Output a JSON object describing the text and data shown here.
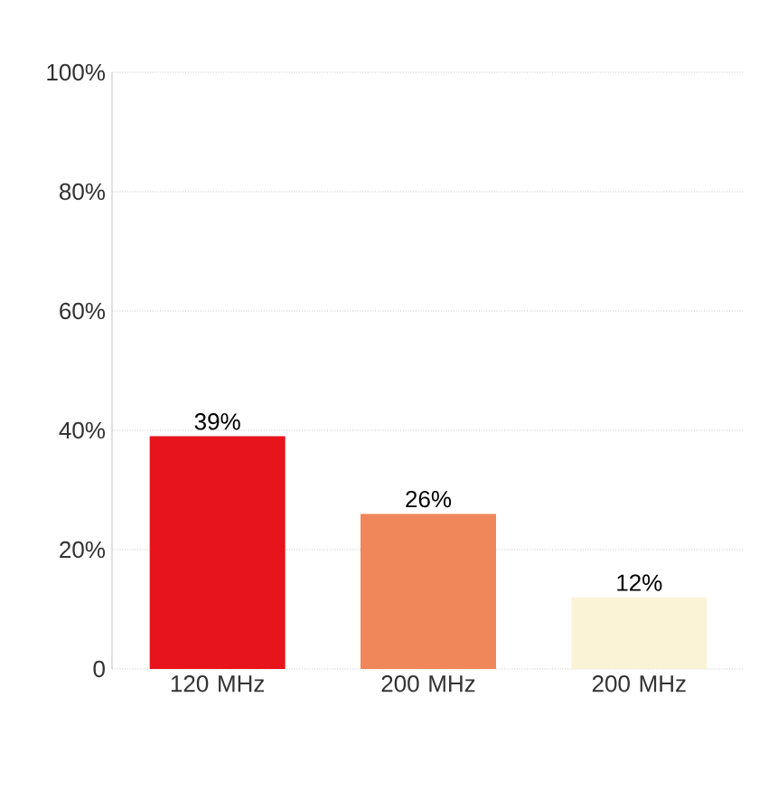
{
  "chart_data": {
    "type": "bar",
    "categories": [
      "120 MHz",
      "200 MHz",
      "200 MHz"
    ],
    "values": [
      39,
      26,
      12
    ],
    "colors": [
      "#e8141c",
      "#f0875a",
      "#fbf3d6"
    ],
    "value_labels": [
      "39%",
      "26%",
      "12%"
    ],
    "ylim": [
      0,
      100
    ],
    "yticks": [
      0,
      {
        "value": 20,
        "label": "20%"
      },
      {
        "value": 40,
        "label": "40%"
      },
      {
        "value": 60,
        "label": "60%"
      },
      {
        "value": 80,
        "label": "80%"
      },
      {
        "value": 100,
        "label": "100%"
      }
    ],
    "grid": "y"
  }
}
